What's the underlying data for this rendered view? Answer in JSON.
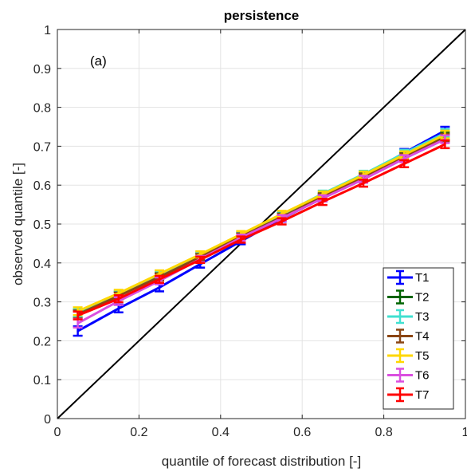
{
  "chart_data": {
    "type": "line",
    "title": "persistence",
    "xlabel": "quantile of forecast distribution [-]",
    "ylabel": "observed quantile [-]",
    "panel_label": "(a)",
    "xlim": [
      0,
      1
    ],
    "ylim": [
      0,
      1
    ],
    "xticks": [
      "0",
      "0.2",
      "0.4",
      "0.6",
      "0.8",
      "1"
    ],
    "xtick_values": [
      0,
      0.2,
      0.4,
      0.6,
      0.8,
      1
    ],
    "yticks": [
      "0",
      "0.1",
      "0.2",
      "0.3",
      "0.4",
      "0.5",
      "0.6",
      "0.7",
      "0.8",
      "0.9",
      "1"
    ],
    "ytick_values": [
      0,
      0.1,
      0.2,
      0.3,
      0.4,
      0.5,
      0.6,
      0.7,
      0.8,
      0.9,
      1
    ],
    "grid": true,
    "legend_position": "bottom-right",
    "reference_line": {
      "x": [
        0,
        1
      ],
      "y": [
        0,
        1
      ],
      "color": "#000000"
    },
    "x": [
      0.05,
      0.15,
      0.25,
      0.35,
      0.45,
      0.55,
      0.65,
      0.75,
      0.85,
      0.95
    ],
    "series": [
      {
        "name": "T1",
        "color": "#0000ff",
        "values": [
          0.225,
          0.283,
          0.337,
          0.397,
          0.456,
          0.514,
          0.567,
          0.622,
          0.683,
          0.74
        ],
        "errors": [
          0.012,
          0.01,
          0.01,
          0.009,
          0.008,
          0.008,
          0.009,
          0.009,
          0.01,
          0.01
        ]
      },
      {
        "name": "T2",
        "color": "#006400",
        "values": [
          0.27,
          0.317,
          0.365,
          0.417,
          0.47,
          0.52,
          0.572,
          0.624,
          0.675,
          0.727
        ],
        "errors": [
          0.01,
          0.009,
          0.009,
          0.008,
          0.008,
          0.008,
          0.008,
          0.009,
          0.009,
          0.01
        ]
      },
      {
        "name": "T3",
        "color": "#40e0d0",
        "values": [
          0.272,
          0.32,
          0.37,
          0.42,
          0.472,
          0.524,
          0.578,
          0.628,
          0.682,
          0.734
        ],
        "errors": [
          0.01,
          0.009,
          0.009,
          0.008,
          0.008,
          0.008,
          0.008,
          0.009,
          0.009,
          0.01
        ]
      },
      {
        "name": "T4",
        "color": "#8b4513",
        "values": [
          0.268,
          0.315,
          0.364,
          0.415,
          0.468,
          0.518,
          0.57,
          0.62,
          0.672,
          0.722
        ],
        "errors": [
          0.01,
          0.009,
          0.009,
          0.008,
          0.008,
          0.008,
          0.008,
          0.009,
          0.009,
          0.01
        ]
      },
      {
        "name": "T5",
        "color": "#ffd700",
        "values": [
          0.276,
          0.322,
          0.372,
          0.422,
          0.474,
          0.526,
          0.576,
          0.626,
          0.678,
          0.73
        ],
        "errors": [
          0.01,
          0.009,
          0.009,
          0.008,
          0.008,
          0.008,
          0.008,
          0.009,
          0.009,
          0.01
        ]
      },
      {
        "name": "T6",
        "color": "#da4fe0",
        "values": [
          0.245,
          0.302,
          0.354,
          0.41,
          0.465,
          0.515,
          0.566,
          0.615,
          0.668,
          0.718
        ],
        "errors": [
          0.011,
          0.01,
          0.009,
          0.008,
          0.008,
          0.008,
          0.008,
          0.009,
          0.009,
          0.01
        ]
      },
      {
        "name": "T7",
        "color": "#ff0000",
        "values": [
          0.265,
          0.308,
          0.358,
          0.408,
          0.46,
          0.507,
          0.557,
          0.605,
          0.655,
          0.705
        ],
        "errors": [
          0.01,
          0.009,
          0.009,
          0.008,
          0.008,
          0.008,
          0.008,
          0.009,
          0.009,
          0.01
        ]
      }
    ]
  }
}
